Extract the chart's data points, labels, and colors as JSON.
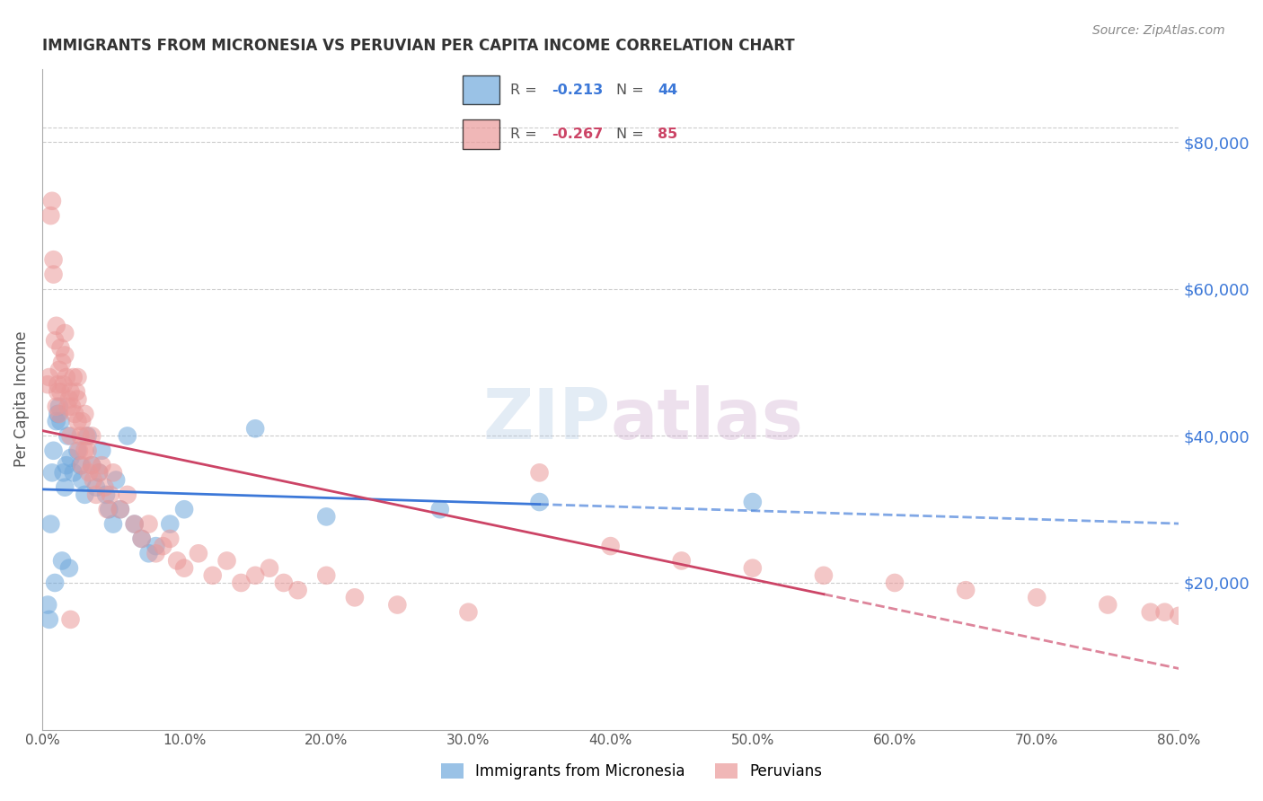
{
  "title": "IMMIGRANTS FROM MICRONESIA VS PERUVIAN PER CAPITA INCOME CORRELATION CHART",
  "source": "Source: ZipAtlas.com",
  "ylabel": "Per Capita Income",
  "xlabel_ticks": [
    "0.0%",
    "10.0%",
    "20.0%",
    "30.0%",
    "40.0%",
    "50.0%",
    "60.0%",
    "70.0%",
    "80.0%"
  ],
  "ytick_labels": [
    "$80,000",
    "$60,000",
    "$40,000",
    "$20,000"
  ],
  "ytick_values": [
    80000,
    60000,
    40000,
    20000
  ],
  "ylim": [
    0,
    90000
  ],
  "xlim": [
    0.0,
    0.8
  ],
  "blue_R": "-0.213",
  "blue_N": "44",
  "pink_R": "-0.267",
  "pink_N": "85",
  "blue_color": "#6fa8dc",
  "pink_color": "#ea9999",
  "blue_line_color": "#3c78d8",
  "pink_line_color": "#cc4466",
  "legend_label_blue": "Immigrants from Micronesia",
  "legend_label_pink": "Peruvians",
  "blue_scatter_x": [
    0.005,
    0.006,
    0.007,
    0.008,
    0.01,
    0.011,
    0.012,
    0.013,
    0.015,
    0.016,
    0.017,
    0.018,
    0.02,
    0.022,
    0.025,
    0.027,
    0.028,
    0.03,
    0.032,
    0.035,
    0.038,
    0.04,
    0.042,
    0.045,
    0.047,
    0.05,
    0.052,
    0.055,
    0.06,
    0.065,
    0.07,
    0.075,
    0.08,
    0.09,
    0.1,
    0.15,
    0.2,
    0.28,
    0.35,
    0.5,
    0.004,
    0.009,
    0.014,
    0.019
  ],
  "blue_scatter_y": [
    15000,
    28000,
    35000,
    38000,
    42000,
    43000,
    44000,
    42000,
    35000,
    33000,
    36000,
    40000,
    37000,
    35000,
    38000,
    36000,
    34000,
    32000,
    40000,
    36000,
    33000,
    35000,
    38000,
    32000,
    30000,
    28000,
    34000,
    30000,
    40000,
    28000,
    26000,
    24000,
    25000,
    28000,
    30000,
    41000,
    29000,
    30000,
    31000,
    31000,
    17000,
    20000,
    23000,
    22000
  ],
  "pink_scatter_x": [
    0.004,
    0.005,
    0.006,
    0.007,
    0.008,
    0.008,
    0.009,
    0.01,
    0.01,
    0.011,
    0.011,
    0.012,
    0.012,
    0.013,
    0.013,
    0.014,
    0.015,
    0.016,
    0.016,
    0.017,
    0.018,
    0.019,
    0.02,
    0.02,
    0.021,
    0.022,
    0.023,
    0.024,
    0.025,
    0.025,
    0.026,
    0.027,
    0.028,
    0.028,
    0.03,
    0.031,
    0.032,
    0.033,
    0.035,
    0.036,
    0.038,
    0.04,
    0.042,
    0.044,
    0.046,
    0.048,
    0.05,
    0.055,
    0.06,
    0.065,
    0.07,
    0.075,
    0.08,
    0.085,
    0.09,
    0.095,
    0.1,
    0.11,
    0.12,
    0.13,
    0.14,
    0.15,
    0.16,
    0.17,
    0.18,
    0.2,
    0.22,
    0.25,
    0.3,
    0.35,
    0.4,
    0.45,
    0.5,
    0.55,
    0.6,
    0.65,
    0.7,
    0.75,
    0.78,
    0.79,
    0.8,
    0.02,
    0.025,
    0.03,
    0.035
  ],
  "pink_scatter_y": [
    47000,
    48000,
    70000,
    72000,
    62000,
    64000,
    53000,
    55000,
    44000,
    46000,
    47000,
    43000,
    49000,
    52000,
    46000,
    50000,
    47000,
    54000,
    51000,
    48000,
    44000,
    45000,
    46000,
    40000,
    44000,
    48000,
    43000,
    46000,
    45000,
    42000,
    38000,
    40000,
    42000,
    36000,
    38000,
    40000,
    38000,
    35000,
    36000,
    34000,
    32000,
    35000,
    36000,
    33000,
    30000,
    32000,
    35000,
    30000,
    32000,
    28000,
    26000,
    28000,
    24000,
    25000,
    26000,
    23000,
    22000,
    24000,
    21000,
    23000,
    20000,
    21000,
    22000,
    20000,
    19000,
    21000,
    18000,
    17000,
    16000,
    35000,
    25000,
    23000,
    22000,
    21000,
    20000,
    19000,
    18000,
    17000,
    16000,
    16000,
    15500,
    15000,
    48000,
    43000,
    40000
  ],
  "grid_color": "#cccccc",
  "bg_color": "#ffffff",
  "title_fontsize": 12,
  "axis_label_color": "#555555",
  "right_axis_color": "#3c78d8"
}
